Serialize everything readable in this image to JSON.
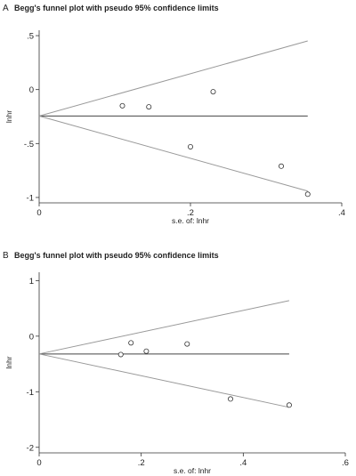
{
  "chart_data": [
    {
      "type": "scatter",
      "panel_label": "A",
      "title": "Begg's funnel plot with pseudo 95% confidence limits",
      "xlabel": "s.e. of: lnhr",
      "ylabel": "lnhr",
      "xlim": [
        0,
        0.4
      ],
      "ylim": [
        -1.05,
        0.55
      ],
      "x_ticks": [
        {
          "value": 0,
          "label": "0"
        },
        {
          "value": 0.2,
          "label": ".2"
        },
        {
          "value": 0.4,
          "label": ".4"
        }
      ],
      "y_ticks": [
        {
          "value": 0.5,
          "label": ".5"
        },
        {
          "value": 0,
          "label": "0"
        },
        {
          "value": -0.5,
          "label": "-.5"
        },
        {
          "value": -1,
          "label": "-1"
        }
      ],
      "points": {
        "x": [
          0.11,
          0.145,
          0.2,
          0.23,
          0.32,
          0.355
        ],
        "y": [
          -0.15,
          -0.16,
          -0.53,
          -0.02,
          -0.71,
          -0.97
        ]
      },
      "pooled_estimate": -0.245,
      "line_x_max": 0.355,
      "grid": false
    },
    {
      "type": "scatter",
      "panel_label": "B",
      "title": "Begg's funnel plot with pseudo 95% confidence limits",
      "xlabel": "s.e. of: lnhr",
      "ylabel": "lnhr",
      "xlim": [
        0,
        0.6
      ],
      "ylim": [
        -2.1,
        1.15
      ],
      "x_ticks": [
        {
          "value": 0,
          "label": "0"
        },
        {
          "value": 0.2,
          "label": ".2"
        },
        {
          "value": 0.4,
          "label": ".4"
        },
        {
          "value": 0.6,
          "label": ".6"
        }
      ],
      "y_ticks": [
        {
          "value": 1,
          "label": "1"
        },
        {
          "value": 0,
          "label": "0"
        },
        {
          "value": -1,
          "label": "-1"
        },
        {
          "value": -2,
          "label": "-2"
        }
      ],
      "points": {
        "x": [
          0.16,
          0.18,
          0.21,
          0.29,
          0.375,
          0.49
        ],
        "y": [
          -0.33,
          -0.12,
          -0.27,
          -0.14,
          -1.13,
          -1.24
        ]
      },
      "pooled_estimate": -0.32,
      "line_x_max": 0.49,
      "grid": false
    }
  ]
}
